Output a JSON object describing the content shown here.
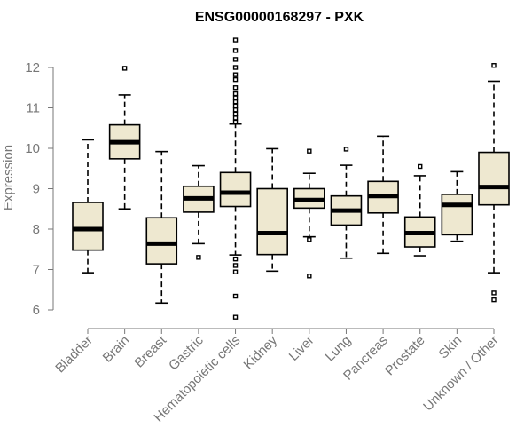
{
  "chart_data": {
    "type": "boxplot",
    "title": "ENSG00000168297 - PXK",
    "xlabel": "",
    "ylabel": "Expression",
    "ylim": [
      5.75,
      12.8
    ],
    "yticks": [
      6,
      7,
      8,
      9,
      10,
      11,
      12
    ],
    "box_fill": "#eee8d0",
    "categories": [
      "Bladder",
      "Brain",
      "Breast",
      "Gastric",
      "Hematopoietic cells",
      "Kidney",
      "Liver",
      "Lung",
      "Pancreas",
      "Prostate",
      "Skin",
      "Unknown / Other"
    ],
    "boxes": [
      {
        "category": "Bladder",
        "whisker_low": 6.92,
        "q1": 7.48,
        "median": 8.0,
        "q3": 8.66,
        "whisker_high": 10.21,
        "outliers": []
      },
      {
        "category": "Brain",
        "whisker_low": 8.5,
        "q1": 9.74,
        "median": 10.15,
        "q3": 10.58,
        "whisker_high": 11.32,
        "outliers": [
          11.98
        ]
      },
      {
        "category": "Breast",
        "whisker_low": 6.17,
        "q1": 7.14,
        "median": 7.64,
        "q3": 8.28,
        "whisker_high": 9.92,
        "outliers": []
      },
      {
        "category": "Gastric",
        "whisker_low": 7.64,
        "q1": 8.42,
        "median": 8.76,
        "q3": 9.06,
        "whisker_high": 9.57,
        "outliers": [
          7.3
        ]
      },
      {
        "category": "Hematopoietic cells",
        "whisker_low": 7.36,
        "q1": 8.56,
        "median": 8.9,
        "q3": 9.4,
        "whisker_high": 10.6,
        "outliers": [
          5.82,
          6.34,
          6.94,
          7.1,
          7.26,
          10.65,
          10.75,
          10.85,
          10.95,
          11.05,
          11.15,
          11.25,
          11.35,
          11.5,
          11.7,
          11.82,
          12.0,
          12.2,
          12.42,
          12.68
        ]
      },
      {
        "category": "Kidney",
        "whisker_low": 6.96,
        "q1": 7.37,
        "median": 7.9,
        "q3": 9.0,
        "whisker_high": 9.99,
        "outliers": []
      },
      {
        "category": "Liver",
        "whisker_low": 7.81,
        "q1": 8.52,
        "median": 8.72,
        "q3": 9.0,
        "whisker_high": 9.38,
        "outliers": [
          6.84,
          7.74,
          9.93
        ]
      },
      {
        "category": "Lung",
        "whisker_low": 7.28,
        "q1": 8.1,
        "median": 8.46,
        "q3": 8.82,
        "whisker_high": 9.58,
        "outliers": [
          9.98
        ]
      },
      {
        "category": "Pancreas",
        "whisker_low": 7.4,
        "q1": 8.4,
        "median": 8.82,
        "q3": 9.18,
        "whisker_high": 10.3,
        "outliers": []
      },
      {
        "category": "Prostate",
        "whisker_low": 7.34,
        "q1": 7.56,
        "median": 7.9,
        "q3": 8.3,
        "whisker_high": 9.32,
        "outliers": [
          9.55
        ]
      },
      {
        "category": "Skin",
        "whisker_low": 7.7,
        "q1": 7.86,
        "median": 8.6,
        "q3": 8.86,
        "whisker_high": 9.42,
        "outliers": []
      },
      {
        "category": "Unknown / Other",
        "whisker_low": 6.92,
        "q1": 8.6,
        "median": 9.04,
        "q3": 9.9,
        "whisker_high": 11.66,
        "outliers": [
          6.25,
          6.42,
          12.05
        ]
      }
    ]
  }
}
